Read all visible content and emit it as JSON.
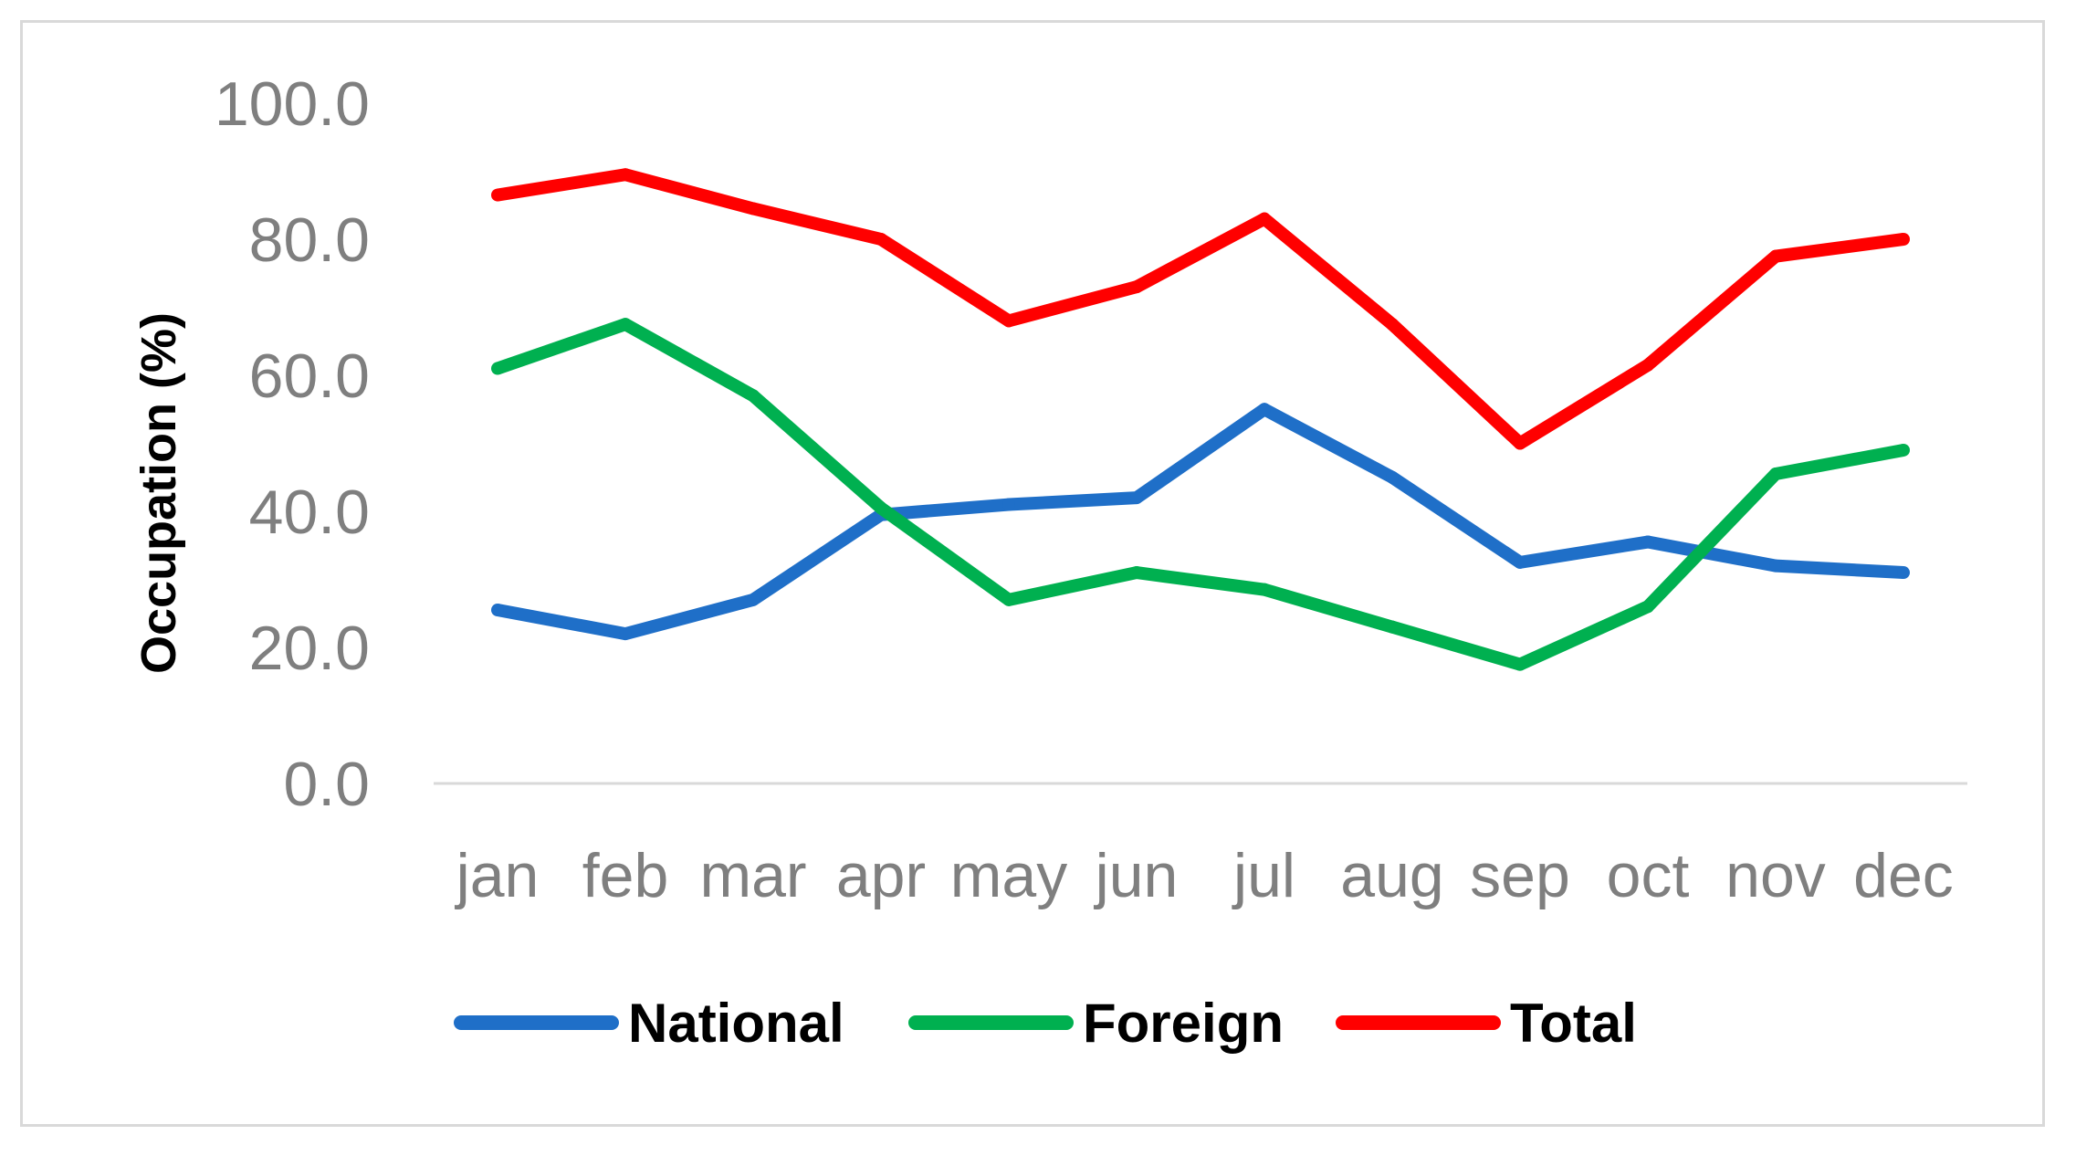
{
  "chart_data": {
    "type": "line",
    "title": "",
    "xlabel": "",
    "ylabel": "Occupation (%)",
    "ylim": [
      0,
      100
    ],
    "yticks": [
      "0.0",
      "20.0",
      "40.0",
      "60.0",
      "80.0",
      "100.0"
    ],
    "categories": [
      "jan",
      "feb",
      "mar",
      "apr",
      "may",
      "jun",
      "jul",
      "aug",
      "sep",
      "oct",
      "nov",
      "dec"
    ],
    "grid": false,
    "legend_position": "bottom",
    "series": [
      {
        "name": "National",
        "color": "#1f6fc8",
        "values": [
          25.5,
          22.0,
          27.0,
          39.5,
          41.0,
          42.0,
          55.0,
          45.0,
          32.5,
          35.5,
          32.0,
          31.0
        ]
      },
      {
        "name": "Foreign",
        "color": "#00b050",
        "values": [
          61.0,
          67.5,
          57.0,
          40.5,
          27.0,
          31.0,
          28.5,
          23.0,
          17.5,
          26.0,
          45.5,
          49.0
        ]
      },
      {
        "name": "Total",
        "color": "#ff0000",
        "values": [
          86.5,
          89.5,
          84.5,
          80.0,
          68.0,
          73.0,
          83.0,
          67.5,
          50.0,
          61.5,
          77.5,
          80.0
        ]
      }
    ]
  }
}
